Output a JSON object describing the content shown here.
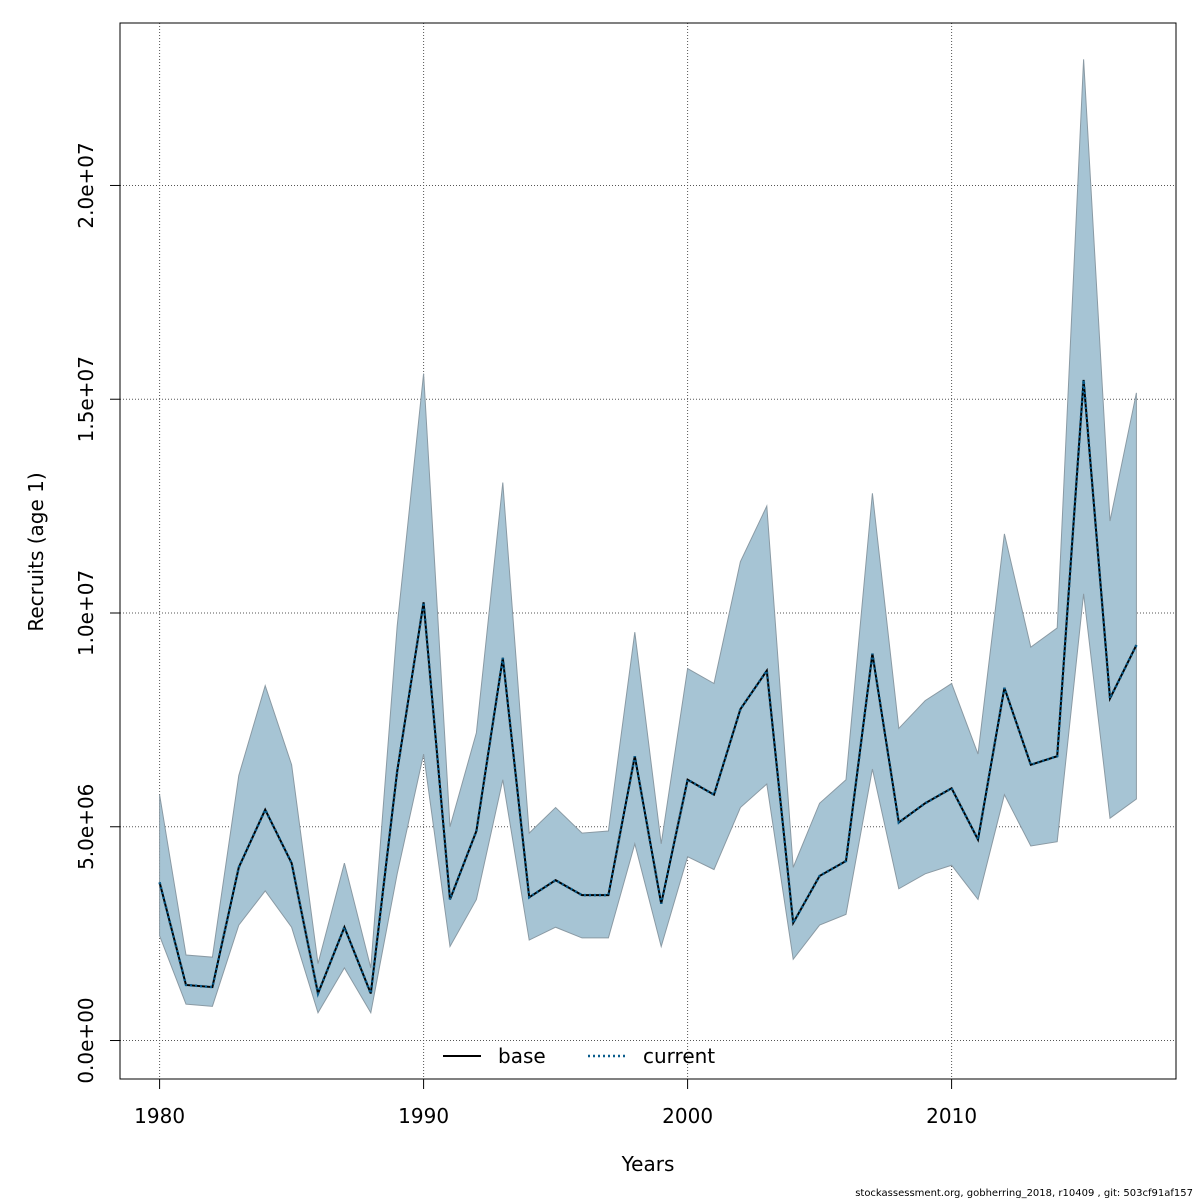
{
  "chart_data": {
    "type": "line",
    "title": "",
    "xlabel": "Years",
    "ylabel": "Recruits (age 1)",
    "xlim": [
      1978.5,
      2018.5
    ],
    "ylim": [
      -900000,
      23800000
    ],
    "x_ticks": [
      1980,
      1990,
      2000,
      2010
    ],
    "x_tick_labels": [
      "1980",
      "1990",
      "2000",
      "2010"
    ],
    "y_ticks": [
      0,
      5000000,
      10000000,
      15000000,
      20000000
    ],
    "y_tick_labels": [
      "0.0e+00",
      "5.0e+06",
      "1.0e+07",
      "1.5e+07",
      "2.0e+07"
    ],
    "grid": true,
    "legend_position": "bottom-center",
    "legend": [
      "base",
      "current"
    ],
    "colors": {
      "band_fill": "#a6c4d4",
      "band_stroke": "#8a9aa4",
      "base_line": "#000000",
      "current_line": "#0a5d8c",
      "grid": "#555555",
      "axis": "#000000"
    },
    "x": [
      1980,
      1981,
      1982,
      1983,
      1984,
      1985,
      1986,
      1987,
      1988,
      1989,
      1990,
      1991,
      1992,
      1993,
      1994,
      1995,
      1996,
      1997,
      1998,
      1999,
      2000,
      2001,
      2002,
      2003,
      2004,
      2005,
      2006,
      2007,
      2008,
      2009,
      2010,
      2011,
      2012,
      2013,
      2014,
      2015,
      2016,
      2017
    ],
    "series": [
      {
        "name": "base",
        "style": "solid",
        "values": [
          3700000,
          1300000,
          1250000,
          4050000,
          5400000,
          4150000,
          1100000,
          2650000,
          1100000,
          6300000,
          10250000,
          3300000,
          4900000,
          8950000,
          3350000,
          3750000,
          3400000,
          3400000,
          6650000,
          3200000,
          6100000,
          5750000,
          7750000,
          8650000,
          2750000,
          3850000,
          4200000,
          9050000,
          5100000,
          5550000,
          5900000,
          4700000,
          8250000,
          6450000,
          6650000,
          15450000,
          8000000,
          9250000
        ]
      },
      {
        "name": "current",
        "style": "dotted",
        "values": [
          3700000,
          1300000,
          1250000,
          4050000,
          5400000,
          4150000,
          1100000,
          2650000,
          1100000,
          6300000,
          10250000,
          3300000,
          4900000,
          8950000,
          3350000,
          3750000,
          3400000,
          3400000,
          6650000,
          3200000,
          6100000,
          5750000,
          7750000,
          8650000,
          2750000,
          3850000,
          4200000,
          9050000,
          5100000,
          5550000,
          5900000,
          4700000,
          8250000,
          6450000,
          6650000,
          15450000,
          8000000,
          9250000
        ]
      }
    ],
    "band": {
      "upper": [
        5750000,
        2000000,
        1950000,
        6200000,
        8300000,
        6450000,
        1800000,
        4150000,
        1700000,
        9700000,
        15600000,
        5000000,
        7200000,
        13050000,
        4850000,
        5450000,
        4850000,
        4900000,
        9550000,
        4600000,
        8700000,
        8350000,
        11200000,
        12500000,
        4050000,
        5550000,
        6100000,
        12800000,
        7300000,
        7950000,
        8350000,
        6700000,
        11850000,
        9200000,
        9650000,
        22950000,
        12150000,
        15150000
      ],
      "lower": [
        2450000,
        850000,
        800000,
        2700000,
        3500000,
        2650000,
        650000,
        1700000,
        650000,
        3900000,
        6700000,
        2200000,
        3300000,
        6100000,
        2350000,
        2650000,
        2400000,
        2400000,
        4600000,
        2200000,
        4300000,
        4000000,
        5450000,
        6000000,
        1900000,
        2700000,
        2950000,
        6350000,
        3550000,
        3900000,
        4100000,
        3300000,
        5750000,
        4550000,
        4650000,
        10450000,
        5200000,
        5650000
      ]
    }
  },
  "footer": "stockassessment.org, gobherring_2018, r10409 , git: 503cf91af157"
}
